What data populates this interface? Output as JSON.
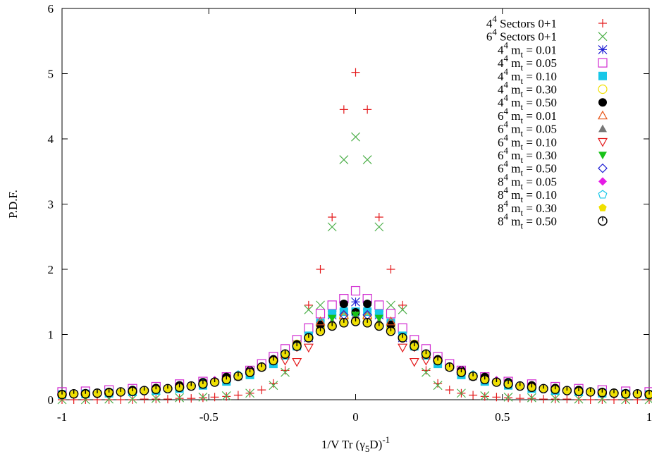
{
  "chart_data": {
    "type": "scatter",
    "xlabel": "1/V Tr (γ5D)-1",
    "ylabel": "P.D.F.",
    "xlim": [
      -1,
      1
    ],
    "ylim": [
      0,
      6
    ],
    "x_ticks": [
      "-1",
      "-0.5",
      "0",
      "0.5",
      "1"
    ],
    "y_ticks": [
      "0",
      "1",
      "2",
      "3",
      "4",
      "5",
      "6"
    ],
    "grid": false,
    "legend_position": "top-right",
    "series": [
      {
        "name": "4^4 Sectors 0+1",
        "marker": "plus",
        "color": "#e41a1c",
        "x": [
          -1.0,
          -0.96,
          -0.92,
          -0.88,
          -0.84,
          -0.8,
          -0.76,
          -0.72,
          -0.68,
          -0.64,
          -0.6,
          -0.56,
          -0.52,
          -0.48,
          -0.44,
          -0.4,
          -0.36,
          -0.32,
          -0.28,
          -0.24,
          -0.2,
          -0.16,
          -0.12,
          -0.08,
          -0.04,
          0.0,
          0.04,
          0.08,
          0.12,
          0.16,
          0.2,
          0.24,
          0.28,
          0.32,
          0.36,
          0.4,
          0.44,
          0.48,
          0.52,
          0.56,
          0.6,
          0.64,
          0.68,
          0.72,
          0.76,
          0.8,
          0.84,
          0.88,
          0.92,
          0.96,
          1.0
        ],
        "y": [
          0.0,
          0.0,
          0.0,
          0.0,
          0.0,
          0.0,
          0.0,
          0.01,
          0.01,
          0.01,
          0.02,
          0.02,
          0.03,
          0.04,
          0.05,
          0.07,
          0.1,
          0.15,
          0.25,
          0.45,
          0.8,
          1.45,
          2.0,
          2.8,
          4.45,
          5.02,
          4.45,
          2.8,
          2.0,
          1.45,
          0.8,
          0.45,
          0.25,
          0.15,
          0.1,
          0.07,
          0.05,
          0.04,
          0.03,
          0.02,
          0.02,
          0.01,
          0.01,
          0.01,
          0.0,
          0.0,
          0.0,
          0.0,
          0.0,
          0.0,
          0.0
        ]
      },
      {
        "name": "6^4 Sectors 0+1",
        "marker": "cross",
        "color": "#4daf4a",
        "x": [
          -1.0,
          -0.92,
          -0.84,
          -0.76,
          -0.68,
          -0.6,
          -0.52,
          -0.44,
          -0.36,
          -0.28,
          -0.24,
          -0.2,
          -0.16,
          -0.12,
          -0.08,
          -0.04,
          0.0,
          0.04,
          0.08,
          0.12,
          0.16,
          0.2,
          0.24,
          0.28,
          0.36,
          0.44,
          0.52,
          0.6,
          0.68,
          0.76,
          0.84,
          0.92,
          1.0
        ],
        "y": [
          0.0,
          0.0,
          0.01,
          0.01,
          0.02,
          0.03,
          0.04,
          0.06,
          0.1,
          0.22,
          0.42,
          0.85,
          1.38,
          1.45,
          2.65,
          3.68,
          4.03,
          3.68,
          2.65,
          1.45,
          1.38,
          0.85,
          0.42,
          0.22,
          0.1,
          0.06,
          0.04,
          0.03,
          0.02,
          0.01,
          0.01,
          0.0,
          0.0
        ]
      },
      {
        "name": "4^4 m_t = 0.01",
        "marker": "star",
        "color": "#1f1fd4",
        "x": [
          -0.16,
          -0.12,
          -0.08,
          -0.04,
          0.0,
          0.04,
          0.08,
          0.12,
          0.16
        ],
        "y": [
          0.95,
          1.15,
          1.3,
          1.45,
          1.5,
          1.45,
          1.3,
          1.15,
          0.95
        ]
      },
      {
        "name": "4^4 m_t = 0.05",
        "marker": "square-open",
        "color": "#d12bd1",
        "x": [
          -1.0,
          -0.92,
          -0.84,
          -0.76,
          -0.68,
          -0.6,
          -0.52,
          -0.44,
          -0.36,
          -0.32,
          -0.28,
          -0.24,
          -0.2,
          -0.16,
          -0.12,
          -0.08,
          -0.04,
          0.0,
          0.04,
          0.08,
          0.12,
          0.16,
          0.2,
          0.24,
          0.28,
          0.32,
          0.36,
          0.44,
          0.52,
          0.6,
          0.68,
          0.76,
          0.84,
          0.92,
          1.0
        ],
        "y": [
          0.12,
          0.13,
          0.15,
          0.17,
          0.2,
          0.24,
          0.28,
          0.35,
          0.45,
          0.55,
          0.66,
          0.78,
          0.92,
          1.1,
          1.32,
          1.45,
          1.55,
          1.67,
          1.55,
          1.45,
          1.32,
          1.1,
          0.92,
          0.78,
          0.66,
          0.55,
          0.45,
          0.35,
          0.28,
          0.24,
          0.2,
          0.17,
          0.15,
          0.13,
          0.12
        ]
      },
      {
        "name": "4^4 m_t = 0.10",
        "marker": "square-filled",
        "color": "#17c7e8",
        "x": [
          -1.0,
          -0.92,
          -0.84,
          -0.76,
          -0.68,
          -0.6,
          -0.52,
          -0.44,
          -0.36,
          -0.28,
          -0.24,
          -0.2,
          -0.16,
          -0.12,
          -0.08,
          -0.04,
          0.0,
          0.04,
          0.08,
          0.12,
          0.16,
          0.2,
          0.24,
          0.28,
          0.36,
          0.44,
          0.52,
          0.6,
          0.68,
          0.76,
          0.84,
          0.92,
          1.0
        ],
        "y": [
          0.08,
          0.09,
          0.1,
          0.12,
          0.14,
          0.17,
          0.22,
          0.28,
          0.38,
          0.55,
          0.68,
          0.82,
          0.98,
          1.18,
          1.32,
          1.35,
          1.35,
          1.35,
          1.32,
          1.18,
          0.98,
          0.82,
          0.68,
          0.55,
          0.38,
          0.28,
          0.22,
          0.17,
          0.14,
          0.12,
          0.1,
          0.09,
          0.08
        ]
      },
      {
        "name": "4^4 m_t = 0.30",
        "marker": "circle-open",
        "color": "#f0e000",
        "x": [
          -0.2,
          -0.12,
          -0.04,
          0.04,
          0.12,
          0.2
        ],
        "y": [
          0.85,
          1.1,
          1.25,
          1.25,
          1.1,
          0.85
        ]
      },
      {
        "name": "4^4 m_t = 0.50",
        "marker": "circle-filled",
        "color": "#000000",
        "x": [
          -1.0,
          -0.92,
          -0.84,
          -0.76,
          -0.68,
          -0.6,
          -0.52,
          -0.44,
          -0.36,
          -0.28,
          -0.2,
          -0.12,
          -0.04,
          0.0,
          0.04,
          0.12,
          0.2,
          0.28,
          0.36,
          0.44,
          0.52,
          0.6,
          0.68,
          0.76,
          0.84,
          0.92,
          1.0
        ],
        "y": [
          0.08,
          0.1,
          0.12,
          0.15,
          0.18,
          0.22,
          0.27,
          0.35,
          0.45,
          0.62,
          0.85,
          1.15,
          1.47,
          1.34,
          1.47,
          1.15,
          0.85,
          0.62,
          0.45,
          0.35,
          0.27,
          0.22,
          0.18,
          0.15,
          0.12,
          0.1,
          0.08
        ]
      },
      {
        "name": "6^4 m_t = 0.01",
        "marker": "triangle-up-open",
        "color": "#e8571a",
        "x": [
          -0.12,
          -0.04,
          0.04,
          0.12
        ],
        "y": [
          1.2,
          1.3,
          1.3,
          1.2
        ]
      },
      {
        "name": "6^4 m_t = 0.05",
        "marker": "triangle-up-filled",
        "color": "#777777",
        "x": [
          -0.4,
          -0.32,
          -0.24,
          -0.16,
          -0.08,
          0.0,
          0.08,
          0.16,
          0.24,
          0.32,
          0.4
        ],
        "y": [
          0.35,
          0.5,
          0.7,
          0.95,
          1.2,
          1.3,
          1.2,
          0.95,
          0.7,
          0.5,
          0.35
        ]
      },
      {
        "name": "6^4 m_t = 0.10",
        "marker": "triangle-down-open",
        "color": "#e41a1c",
        "x": [
          -0.24,
          -0.2,
          -0.16,
          0.16,
          0.2,
          0.24
        ],
        "y": [
          0.6,
          0.58,
          0.8,
          0.8,
          0.58,
          0.6
        ]
      },
      {
        "name": "6^4 m_t = 0.30",
        "marker": "triangle-down-filled",
        "color": "#17c217",
        "x": [
          -0.08,
          0.0,
          0.08
        ],
        "y": [
          1.25,
          1.3,
          1.25
        ]
      },
      {
        "name": "6^4 m_t = 0.50",
        "marker": "diamond-open",
        "color": "#1f1fd4",
        "x": [
          -0.04,
          0.04
        ],
        "y": [
          1.3,
          1.3
        ]
      },
      {
        "name": "8^4 m_t = 0.05",
        "marker": "diamond-filled",
        "color": "#e51be5",
        "x": [
          -0.6,
          -0.48,
          -0.36,
          0.36,
          0.48,
          0.6
        ],
        "y": [
          0.2,
          0.3,
          0.45,
          0.45,
          0.3,
          0.2
        ]
      },
      {
        "name": "8^4 m_t = 0.10",
        "marker": "pentagon-open",
        "color": "#17c7e8",
        "x": [
          -0.52,
          -0.4,
          -0.2,
          0.2,
          0.4,
          0.52
        ],
        "y": [
          0.25,
          0.38,
          0.82,
          0.82,
          0.38,
          0.25
        ]
      },
      {
        "name": "8^4 m_t = 0.30",
        "marker": "pentagon-filled",
        "color": "#f0e000",
        "x": [
          -1.0,
          -0.96,
          -0.92,
          -0.88,
          -0.84,
          -0.8,
          -0.76,
          -0.72,
          -0.68,
          -0.64,
          -0.6,
          -0.56,
          -0.52,
          -0.48,
          -0.44,
          -0.4,
          -0.36,
          -0.32,
          -0.28,
          -0.24,
          -0.2,
          -0.16,
          -0.12,
          -0.08,
          -0.04,
          0.0,
          0.04,
          0.08,
          0.12,
          0.16,
          0.2,
          0.24,
          0.28,
          0.32,
          0.36,
          0.4,
          0.44,
          0.48,
          0.52,
          0.56,
          0.6,
          0.64,
          0.68,
          0.72,
          0.76,
          0.8,
          0.84,
          0.88,
          0.92,
          0.96,
          1.0
        ],
        "y": [
          0.08,
          0.09,
          0.09,
          0.1,
          0.11,
          0.12,
          0.13,
          0.14,
          0.16,
          0.17,
          0.19,
          0.21,
          0.24,
          0.27,
          0.31,
          0.36,
          0.42,
          0.5,
          0.6,
          0.7,
          0.82,
          0.95,
          1.05,
          1.13,
          1.18,
          1.2,
          1.18,
          1.13,
          1.05,
          0.95,
          0.82,
          0.7,
          0.6,
          0.5,
          0.42,
          0.36,
          0.31,
          0.27,
          0.24,
          0.21,
          0.19,
          0.17,
          0.16,
          0.14,
          0.13,
          0.12,
          0.11,
          0.1,
          0.09,
          0.09,
          0.08
        ]
      },
      {
        "name": "8^4 m_t = 0.50",
        "marker": "circle-tick",
        "color": "#000000",
        "x": [
          -1.0,
          -0.96,
          -0.92,
          -0.88,
          -0.84,
          -0.8,
          -0.76,
          -0.72,
          -0.68,
          -0.64,
          -0.6,
          -0.56,
          -0.52,
          -0.48,
          -0.44,
          -0.4,
          -0.36,
          -0.32,
          -0.28,
          -0.24,
          -0.2,
          -0.16,
          -0.12,
          -0.08,
          -0.04,
          0.0,
          0.04,
          0.08,
          0.12,
          0.16,
          0.2,
          0.24,
          0.28,
          0.32,
          0.36,
          0.4,
          0.44,
          0.48,
          0.52,
          0.56,
          0.6,
          0.64,
          0.68,
          0.72,
          0.76,
          0.8,
          0.84,
          0.88,
          0.92,
          0.96,
          1.0
        ],
        "y": [
          0.08,
          0.09,
          0.09,
          0.1,
          0.11,
          0.12,
          0.13,
          0.14,
          0.16,
          0.17,
          0.19,
          0.21,
          0.24,
          0.27,
          0.31,
          0.36,
          0.42,
          0.5,
          0.6,
          0.7,
          0.82,
          0.95,
          1.05,
          1.13,
          1.18,
          1.2,
          1.18,
          1.13,
          1.05,
          0.95,
          0.82,
          0.7,
          0.6,
          0.5,
          0.42,
          0.36,
          0.31,
          0.27,
          0.24,
          0.21,
          0.19,
          0.17,
          0.16,
          0.14,
          0.13,
          0.12,
          0.11,
          0.1,
          0.09,
          0.09,
          0.08
        ]
      }
    ]
  }
}
